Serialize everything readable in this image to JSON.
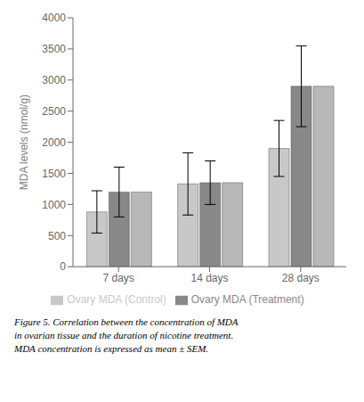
{
  "chart_data": {
    "type": "bar",
    "categories": [
      "7 days",
      "14 days",
      "28 days"
    ],
    "series": [
      {
        "name": "Ovary MDA (Control)",
        "color": "#c8c8c8",
        "values": [
          880,
          1330,
          1900
        ],
        "errors": [
          340,
          500,
          450
        ]
      },
      {
        "name": "Ovary MDA (Treatment)",
        "color": "#888888",
        "values": [
          1200,
          1350,
          2900
        ],
        "errors": [
          400,
          350,
          650
        ]
      },
      {
        "color": "#b8b8b8",
        "values": [
          1200,
          1350,
          2900
        ]
      }
    ],
    "ylabel": "MDA levels (nmol/g)",
    "ylim": [
      0,
      4000
    ],
    "yticks": [
      0,
      500,
      1000,
      1500,
      2000,
      2500,
      3000,
      3500,
      4000
    ],
    "grid": false,
    "legend": "bottom",
    "annotations": [
      "Figure 5. Correlation between the concentration of MDA",
      "in ovarian tissue and the duration of nicotine treatment.",
      "MDA concentration is expressed as mean ± SEM."
    ]
  }
}
